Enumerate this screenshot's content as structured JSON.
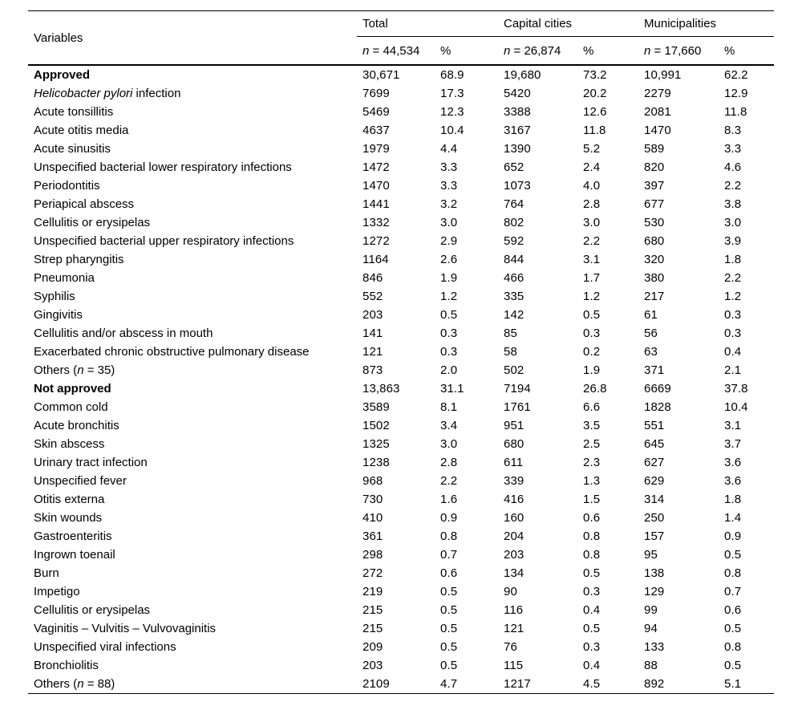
{
  "colors": {
    "text": "#000000",
    "background": "#ffffff",
    "rule": "#000000"
  },
  "table": {
    "variables_header": "Variables",
    "groups": [
      {
        "label": "Total",
        "n": [
          {
            "t": "n",
            "i": true
          },
          {
            "t": " = 44,534"
          }
        ],
        "pct": "%"
      },
      {
        "label": "Capital cities",
        "n": [
          {
            "t": "n",
            "i": true
          },
          {
            "t": " = 26,874"
          }
        ],
        "pct": "%"
      },
      {
        "label": "Municipalities",
        "n": [
          {
            "t": "n",
            "i": true
          },
          {
            "t": " = 17,660"
          }
        ],
        "pct": "%"
      }
    ],
    "rows": [
      {
        "label": "Approved",
        "bold": true,
        "cells": [
          "30,671",
          "68.9",
          "19,680",
          "73.2",
          "10,991",
          "62.2"
        ]
      },
      {
        "label": [
          {
            "t": "Helicobacter pylori",
            "i": true
          },
          {
            "t": " infection"
          }
        ],
        "cells": [
          "7699",
          "17.3",
          "5420",
          "20.2",
          "2279",
          "12.9"
        ]
      },
      {
        "label": "Acute tonsillitis",
        "cells": [
          "5469",
          "12.3",
          "3388",
          "12.6",
          "2081",
          "11.8"
        ]
      },
      {
        "label": "Acute otitis media",
        "cells": [
          "4637",
          "10.4",
          "3167",
          "11.8",
          "1470",
          "8.3"
        ]
      },
      {
        "label": "Acute sinusitis",
        "cells": [
          "1979",
          "4.4",
          "1390",
          "5.2",
          "589",
          "3.3"
        ]
      },
      {
        "label": "Unspecified bacterial lower respiratory infections",
        "cells": [
          "1472",
          "3.3",
          "652",
          "2.4",
          "820",
          "4.6"
        ]
      },
      {
        "label": "Periodontitis",
        "cells": [
          "1470",
          "3.3",
          "1073",
          "4.0",
          "397",
          "2.2"
        ]
      },
      {
        "label": "Periapical abscess",
        "cells": [
          "1441",
          "3.2",
          "764",
          "2.8",
          "677",
          "3.8"
        ]
      },
      {
        "label": "Cellulitis or erysipelas",
        "cells": [
          "1332",
          "3.0",
          "802",
          "3.0",
          "530",
          "3.0"
        ]
      },
      {
        "label": "Unspecified bacterial upper respiratory infections",
        "cells": [
          "1272",
          "2.9",
          "592",
          "2.2",
          "680",
          "3.9"
        ]
      },
      {
        "label": "Strep pharyngitis",
        "cells": [
          "1164",
          "2.6",
          "844",
          "3.1",
          "320",
          "1.8"
        ]
      },
      {
        "label": "Pneumonia",
        "cells": [
          "846",
          "1.9",
          "466",
          "1.7",
          "380",
          "2.2"
        ]
      },
      {
        "label": "Syphilis",
        "cells": [
          "552",
          "1.2",
          "335",
          "1.2",
          "217",
          "1.2"
        ]
      },
      {
        "label": "Gingivitis",
        "cells": [
          "203",
          "0.5",
          "142",
          "0.5",
          "61",
          "0.3"
        ]
      },
      {
        "label": "Cellulitis and/or abscess in mouth",
        "cells": [
          "141",
          "0.3",
          "85",
          "0.3",
          "56",
          "0.3"
        ]
      },
      {
        "label": "Exacerbated chronic obstructive pulmonary disease",
        "cells": [
          "121",
          "0.3",
          "58",
          "0.2",
          "63",
          "0.4"
        ]
      },
      {
        "label": [
          {
            "t": "Others ("
          },
          {
            "t": "n",
            "i": true
          },
          {
            "t": " = 35)"
          }
        ],
        "cells": [
          "873",
          "2.0",
          "502",
          "1.9",
          "371",
          "2.1"
        ]
      },
      {
        "label": "Not approved",
        "bold": true,
        "cells": [
          "13,863",
          "31.1",
          "7194",
          "26.8",
          "6669",
          "37.8"
        ]
      },
      {
        "label": "Common cold",
        "cells": [
          "3589",
          "8.1",
          "1761",
          "6.6",
          "1828",
          "10.4"
        ]
      },
      {
        "label": "Acute bronchitis",
        "cells": [
          "1502",
          "3.4",
          "951",
          "3.5",
          "551",
          "3.1"
        ]
      },
      {
        "label": "Skin abscess",
        "cells": [
          "1325",
          "3.0",
          "680",
          "2.5",
          "645",
          "3.7"
        ]
      },
      {
        "label": "Urinary tract infection",
        "cells": [
          "1238",
          "2.8",
          "611",
          "2.3",
          "627",
          "3.6"
        ]
      },
      {
        "label": "Unspecified fever",
        "cells": [
          "968",
          "2.2",
          "339",
          "1.3",
          "629",
          "3.6"
        ]
      },
      {
        "label": "Otitis externa",
        "cells": [
          "730",
          "1.6",
          "416",
          "1.5",
          "314",
          "1.8"
        ]
      },
      {
        "label": "Skin wounds",
        "cells": [
          "410",
          "0.9",
          "160",
          "0.6",
          "250",
          "1.4"
        ]
      },
      {
        "label": "Gastroenteritis",
        "cells": [
          "361",
          "0.8",
          "204",
          "0.8",
          "157",
          "0.9"
        ]
      },
      {
        "label": "Ingrown toenail",
        "cells": [
          "298",
          "0.7",
          "203",
          "0.8",
          "95",
          "0.5"
        ]
      },
      {
        "label": "Burn",
        "cells": [
          "272",
          "0.6",
          "134",
          "0.5",
          "138",
          "0.8"
        ]
      },
      {
        "label": "Impetigo",
        "cells": [
          "219",
          "0.5",
          "90",
          "0.3",
          "129",
          "0.7"
        ]
      },
      {
        "label": "Cellulitis or erysipelas",
        "cells": [
          "215",
          "0.5",
          "116",
          "0.4",
          "99",
          "0.6"
        ]
      },
      {
        "label": "Vaginitis – Vulvitis – Vulvovaginitis",
        "cells": [
          "215",
          "0.5",
          "121",
          "0.5",
          "94",
          "0.5"
        ]
      },
      {
        "label": "Unspecified viral infections",
        "cells": [
          "209",
          "0.5",
          "76",
          "0.3",
          "133",
          "0.8"
        ]
      },
      {
        "label": "Bronchiolitis",
        "cells": [
          "203",
          "0.5",
          "115",
          "0.4",
          "88",
          "0.5"
        ]
      },
      {
        "label": [
          {
            "t": "Others ("
          },
          {
            "t": "n",
            "i": true
          },
          {
            "t": " = 88)"
          }
        ],
        "cells": [
          "2109",
          "4.7",
          "1217",
          "4.5",
          "892",
          "5.1"
        ]
      }
    ]
  }
}
